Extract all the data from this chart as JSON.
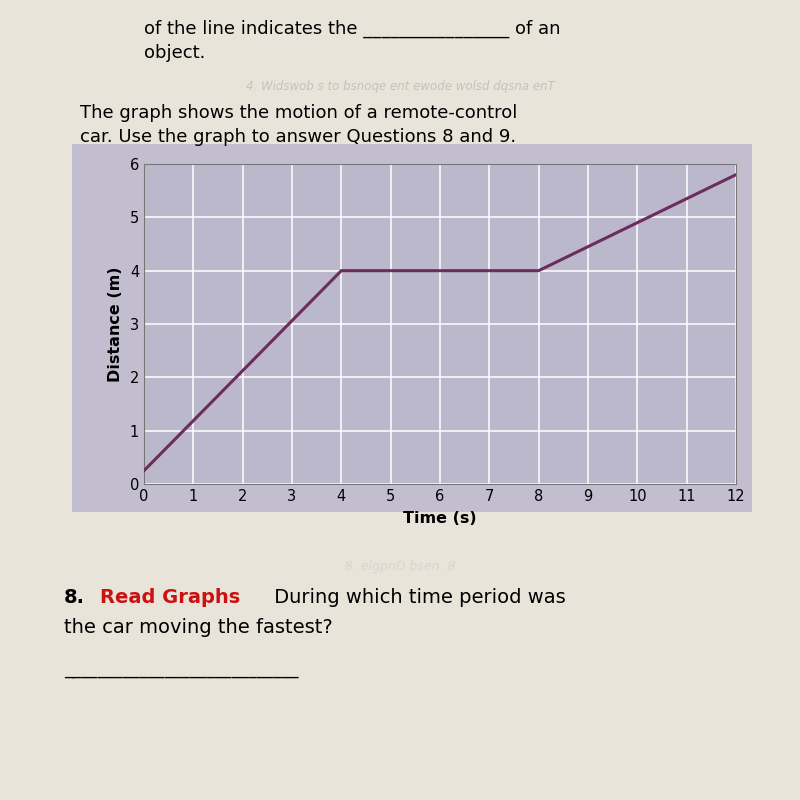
{
  "x_data": [
    0,
    4,
    8,
    12
  ],
  "y_data": [
    0.25,
    4,
    4,
    5.8
  ],
  "line_color": "#6b2d5e",
  "line_width": 2.2,
  "plot_bg_color": "#bbb8cc",
  "outer_bg_color": "#c2becf",
  "page_bg_color": "#e8e4da",
  "xlabel": "Time (s)",
  "ylabel": "Distance (m)",
  "xlim": [
    0,
    12
  ],
  "ylim": [
    0,
    6
  ],
  "xticks": [
    0,
    1,
    2,
    3,
    4,
    5,
    6,
    7,
    8,
    9,
    10,
    11,
    12
  ],
  "yticks": [
    0,
    1,
    2,
    3,
    4,
    5,
    6
  ],
  "grid_color": "#ffffff",
  "header_line1": "of the line indicates the ________________ of an",
  "header_line2": "object.",
  "title_line1": "The graph shows the motion of a remote-control",
  "title_line2": "car. Use the graph to answer Questions 8 and 9.",
  "q_prefix": "8.",
  "q_highlight": "Read Graphs",
  "q_rest": " During which time period was",
  "q_line2": "the car moving the fastest?",
  "font_size_body": 13,
  "font_size_axis_label": 11.5,
  "font_size_tick": 10.5
}
